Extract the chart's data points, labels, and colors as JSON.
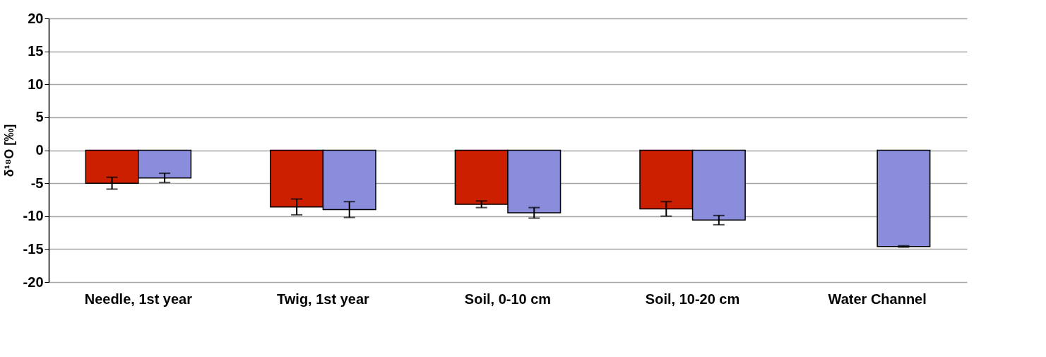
{
  "chart_data": {
    "type": "bar",
    "ylabel": "δ¹⁸O [‰]",
    "categories": [
      "Needle, 1st year",
      "Twig, 1st year",
      "Soil, 0-10 cm",
      "Soil, 10-20 cm",
      "Water Channel"
    ],
    "series": [
      {
        "color": "#cc1f00",
        "values": [
          -5.0,
          -8.6,
          -8.2,
          -8.9,
          null
        ],
        "errors": [
          0.9,
          1.2,
          0.5,
          1.1,
          null
        ]
      },
      {
        "color": "#8a8cdc",
        "values": [
          -4.2,
          -9.0,
          -9.5,
          -10.6,
          -14.6
        ],
        "errors": [
          0.7,
          1.2,
          0.8,
          0.7,
          0.1
        ]
      }
    ],
    "ylim": [
      -20,
      20
    ],
    "yticks": [
      -20,
      -15,
      -10,
      -5,
      0,
      5,
      10,
      15,
      20
    ],
    "grid": "y",
    "legend": false
  }
}
